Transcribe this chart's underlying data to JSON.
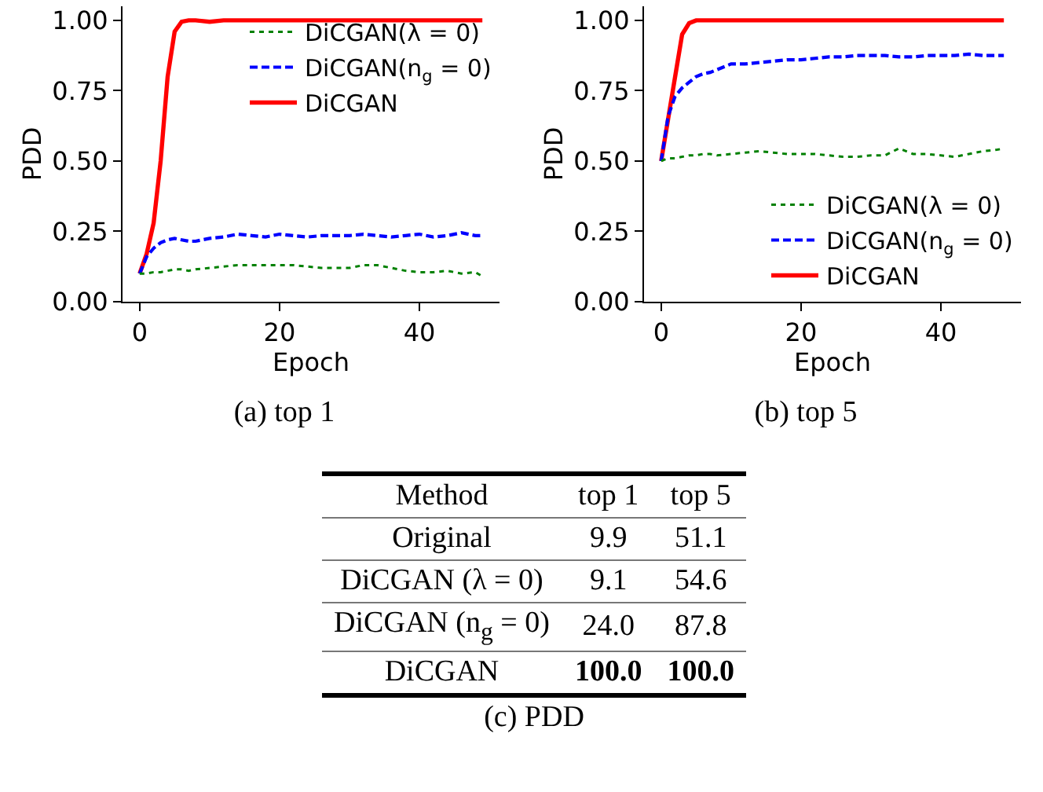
{
  "chart_data": [
    {
      "type": "line",
      "title": "(a) top 1",
      "xlabel": "Epoch",
      "ylabel": "PDD",
      "legend": "top right",
      "grid": false,
      "x": [
        0,
        1,
        2,
        3,
        4,
        5,
        6,
        7,
        8,
        10,
        12,
        14,
        16,
        18,
        20,
        22,
        24,
        26,
        28,
        30,
        32,
        34,
        36,
        38,
        40,
        42,
        44,
        46,
        48,
        49
      ],
      "xlim": [
        -2.45,
        51.45
      ],
      "xticks": [
        0,
        20,
        40
      ],
      "ylim": [
        0,
        1.05
      ],
      "yticks": [
        {
          "value": 0,
          "label": "0.00"
        },
        {
          "value": 0.25,
          "label": "0.25"
        },
        {
          "value": 0.5,
          "label": "0.50"
        },
        {
          "value": 0.75,
          "label": "0.75"
        },
        {
          "value": 1,
          "label": "1.00"
        }
      ],
      "series": [
        {
          "name": "DiCGAN(λ = 0)",
          "color": "#008000",
          "line_style": "dotted",
          "values": [
            0.1,
            0.1,
            0.105,
            0.105,
            0.11,
            0.115,
            0.115,
            0.11,
            0.115,
            0.12,
            0.125,
            0.13,
            0.13,
            0.13,
            0.13,
            0.13,
            0.125,
            0.12,
            0.12,
            0.12,
            0.13,
            0.13,
            0.12,
            0.11,
            0.105,
            0.105,
            0.11,
            0.1,
            0.105,
            0.09
          ]
        },
        {
          "name": "DiCGAN(n$_{g}$ = 0)",
          "color": "#0000ff",
          "line_style": "dashed",
          "values": [
            0.1,
            0.16,
            0.19,
            0.21,
            0.22,
            0.225,
            0.22,
            0.215,
            0.215,
            0.225,
            0.23,
            0.24,
            0.235,
            0.23,
            0.24,
            0.235,
            0.23,
            0.235,
            0.235,
            0.235,
            0.24,
            0.235,
            0.23,
            0.235,
            0.24,
            0.23,
            0.235,
            0.245,
            0.235,
            0.235
          ]
        },
        {
          "name": "DiCGAN",
          "color": "#ff0000",
          "line_style": "solid",
          "values": [
            0.1,
            0.17,
            0.28,
            0.5,
            0.8,
            0.96,
            0.995,
            1.0,
            1.0,
            0.995,
            1.0,
            1.0,
            1.0,
            1.0,
            1.0,
            1.0,
            1.0,
            1.0,
            1.0,
            1.0,
            1.0,
            1.0,
            1.0,
            1.0,
            1.0,
            1.0,
            1.0,
            1.0,
            1.0,
            1.0
          ]
        }
      ]
    },
    {
      "type": "line",
      "title": "(b) top 5",
      "xlabel": "Epoch",
      "ylabel": "PDD",
      "legend": "bottom right",
      "grid": false,
      "x": [
        0,
        1,
        2,
        3,
        4,
        5,
        6,
        7,
        8,
        10,
        12,
        14,
        16,
        18,
        20,
        22,
        24,
        26,
        28,
        30,
        32,
        34,
        36,
        38,
        40,
        42,
        44,
        46,
        48,
        49
      ],
      "xlim": [
        -2.45,
        51.45
      ],
      "xticks": [
        0,
        20,
        40
      ],
      "ylim": [
        0,
        1.05
      ],
      "yticks": [
        {
          "value": 0,
          "label": "0.00"
        },
        {
          "value": 0.25,
          "label": "0.25"
        },
        {
          "value": 0.5,
          "label": "0.50"
        },
        {
          "value": 0.75,
          "label": "0.75"
        },
        {
          "value": 1,
          "label": "1.00"
        }
      ],
      "series": [
        {
          "name": "DiCGAN(λ = 0)",
          "color": "#008000",
          "line_style": "dotted",
          "values": [
            0.5,
            0.51,
            0.51,
            0.515,
            0.52,
            0.52,
            0.525,
            0.525,
            0.52,
            0.525,
            0.53,
            0.535,
            0.53,
            0.525,
            0.525,
            0.525,
            0.52,
            0.515,
            0.515,
            0.52,
            0.52,
            0.545,
            0.525,
            0.525,
            0.52,
            0.515,
            0.525,
            0.535,
            0.54,
            0.545
          ]
        },
        {
          "name": "DiCGAN(n$_{g}$ = 0)",
          "color": "#0000ff",
          "line_style": "dashed",
          "values": [
            0.5,
            0.66,
            0.73,
            0.76,
            0.78,
            0.8,
            0.81,
            0.815,
            0.825,
            0.845,
            0.845,
            0.85,
            0.855,
            0.86,
            0.86,
            0.865,
            0.87,
            0.87,
            0.875,
            0.875,
            0.875,
            0.87,
            0.87,
            0.875,
            0.875,
            0.875,
            0.88,
            0.875,
            0.875,
            0.875
          ]
        },
        {
          "name": "DiCGAN",
          "color": "#ff0000",
          "line_style": "solid",
          "values": [
            0.5,
            0.65,
            0.8,
            0.95,
            0.99,
            1.0,
            1.0,
            1.0,
            1.0,
            1.0,
            1.0,
            1.0,
            1.0,
            1.0,
            1.0,
            1.0,
            1.0,
            1.0,
            1.0,
            1.0,
            1.0,
            1.0,
            1.0,
            1.0,
            1.0,
            1.0,
            1.0,
            1.0,
            1.0,
            1.0
          ]
        }
      ]
    },
    {
      "type": "other",
      "title": "(c) PDD",
      "xlabel": "Method",
      "categories": [
        "Original",
        "DiCGAN (λ = 0)",
        "DiCGAN (n$_{g}$ = 0)",
        "DiCGAN"
      ],
      "series": [
        {
          "name": "top 1",
          "values": [
            9.9,
            9.1,
            24.0,
            100.0
          ],
          "value_labels": [
            "9.9",
            "9.1",
            "24.0",
            "100.0"
          ]
        },
        {
          "name": "top 5",
          "values": [
            51.1,
            54.6,
            87.8,
            100.0
          ],
          "value_labels": [
            "51.1",
            "54.6",
            "87.8",
            "100.0"
          ]
        }
      ]
    }
  ]
}
